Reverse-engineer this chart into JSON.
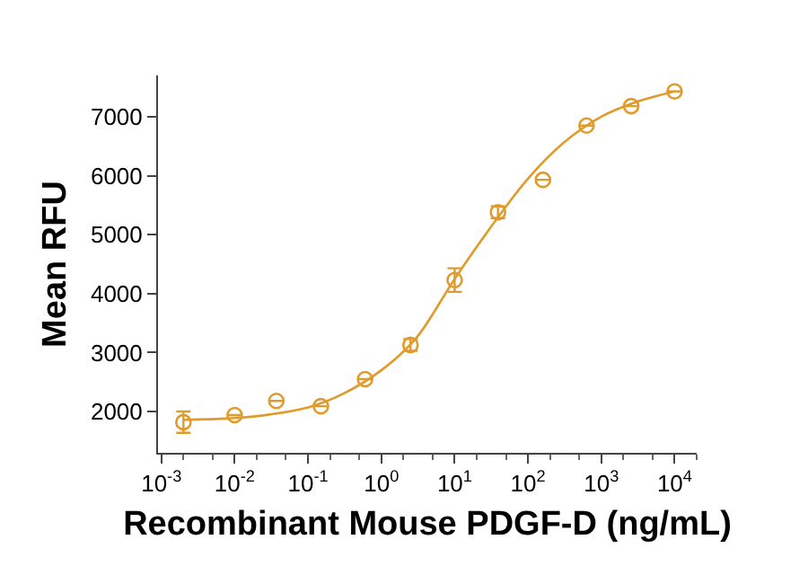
{
  "chart_data": {
    "type": "scatter",
    "xlabel": "Recombinant Mouse PDGF-D (ng/mL)",
    "ylabel": "Mean RFU",
    "log": "x",
    "grid": false,
    "xlim": [
      0.0009,
      20000
    ],
    "xticks": [
      {
        "value": 0.001,
        "label": "10$^{-3}$"
      },
      {
        "value": 0.01,
        "label": "10$^{-2}$"
      },
      {
        "value": 0.1,
        "label": "10$^{-1}$"
      },
      {
        "value": 1,
        "label": "10$^{0}$"
      },
      {
        "value": 10,
        "label": "10$^{1}$"
      },
      {
        "value": 100,
        "label": "10$^{2}$"
      },
      {
        "value": 1000,
        "label": "10$^{3}$"
      },
      {
        "value": 10000,
        "label": "10$^{4}$"
      }
    ],
    "ylim": [
      1300,
      7700
    ],
    "yticks": [
      2000,
      3000,
      4000,
      5000,
      6000,
      7000
    ],
    "series": [
      {
        "color": "#e09b2d",
        "marker": "circle",
        "x": [
          0.002,
          0.01,
          0.037,
          0.15,
          0.6,
          2.5,
          10,
          39,
          160,
          630,
          2560,
          10000
        ],
        "values": [
          1820,
          1940,
          2180,
          2090,
          2550,
          3130,
          4230,
          5380,
          5930,
          6850,
          7180,
          7430
        ],
        "errors": [
          180,
          null,
          null,
          null,
          null,
          100,
          200,
          100,
          null,
          null,
          null,
          null
        ]
      },
      {
        "type": "line",
        "marker": "none",
        "color": "#e09b2d",
        "line_style": "solid",
        "x": [
          0.002,
          0.01,
          0.03,
          0.1,
          0.3,
          1,
          3,
          10,
          30,
          100,
          300,
          1000,
          3000,
          10000
        ],
        "values": [
          1860,
          1890,
          1950,
          2070,
          2300,
          2700,
          3250,
          4250,
          5100,
          5950,
          6550,
          7000,
          7250,
          7430
        ]
      }
    ]
  }
}
